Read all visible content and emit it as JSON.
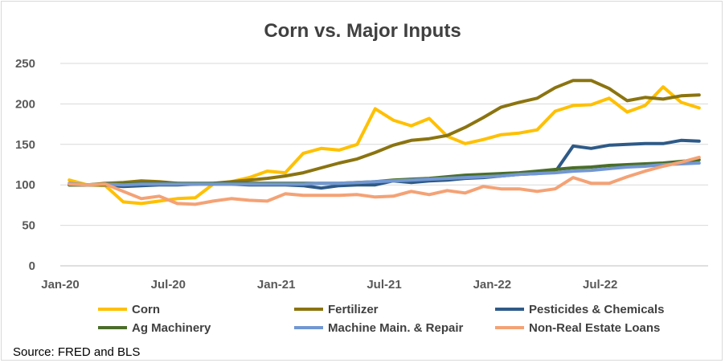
{
  "chart_data": {
    "type": "line",
    "title": "Corn vs. Major Inputs",
    "xlabel": "",
    "ylabel": "",
    "ylim": [
      0,
      250
    ],
    "yticks": [
      0,
      50,
      100,
      150,
      200,
      250
    ],
    "grid": true,
    "legend_position": "bottom",
    "x": [
      "Jan-20",
      "Feb-20",
      "Mar-20",
      "Apr-20",
      "May-20",
      "Jun-20",
      "Jul-20",
      "Aug-20",
      "Sep-20",
      "Oct-20",
      "Nov-20",
      "Dec-20",
      "Jan-21",
      "Feb-21",
      "Mar-21",
      "Apr-21",
      "May-21",
      "Jun-21",
      "Jul-21",
      "Aug-21",
      "Sep-21",
      "Oct-21",
      "Nov-21",
      "Dec-21",
      "Jan-22",
      "Feb-22",
      "Mar-22",
      "Apr-22",
      "May-22",
      "Jun-22",
      "Jul-22",
      "Aug-22",
      "Sep-22",
      "Oct-22",
      "Nov-22",
      "Dec-22"
    ],
    "xtick_labels": [
      {
        "index": 0,
        "label": "Jan-20"
      },
      {
        "index": 6,
        "label": "Jul-20"
      },
      {
        "index": 12,
        "label": "Jan-21"
      },
      {
        "index": 18,
        "label": "Jul-21"
      },
      {
        "index": 24,
        "label": "Jan-22"
      },
      {
        "index": 30,
        "label": "Jul-22"
      }
    ],
    "series": [
      {
        "name": "Corn",
        "color": "#ffc000",
        "values": [
          106,
          100,
          99,
          79,
          77,
          80,
          83,
          84,
          101,
          104,
          109,
          117,
          115,
          139,
          145,
          143,
          150,
          194,
          180,
          173,
          182,
          160,
          151,
          156,
          162,
          164,
          168,
          191,
          198,
          199,
          207,
          190,
          198,
          221,
          202,
          195
        ]
      },
      {
        "name": "Fertilizer",
        "color": "#8b7410",
        "values": [
          100,
          100,
          102,
          103,
          105,
          104,
          102,
          101,
          102,
          104,
          106,
          108,
          111,
          115,
          121,
          127,
          132,
          140,
          149,
          155,
          157,
          161,
          171,
          183,
          196,
          202,
          207,
          220,
          229,
          229,
          219,
          204,
          208,
          206,
          210,
          211
        ]
      },
      {
        "name": "Pesticides & Chemicals",
        "color": "#2e5a87",
        "values": [
          100,
          100,
          100,
          98,
          99,
          100,
          100,
          101,
          101,
          101,
          100,
          100,
          100,
          99,
          96,
          99,
          100,
          100,
          105,
          103,
          105,
          106,
          108,
          109,
          111,
          113,
          114,
          116,
          148,
          145,
          149,
          150,
          151,
          151,
          155,
          154
        ]
      },
      {
        "name": "Ag Machinery",
        "color": "#4a6e2a",
        "values": [
          100,
          100,
          101,
          101,
          102,
          102,
          102,
          102,
          102,
          102,
          102,
          102,
          102,
          102,
          102,
          102,
          103,
          104,
          106,
          107,
          108,
          110,
          112,
          113,
          114,
          115,
          117,
          119,
          121,
          122,
          124,
          125,
          126,
          127,
          129,
          131
        ]
      },
      {
        "name": "Machine Main. & Repair",
        "color": "#7297d2",
        "values": [
          102,
          100,
          101,
          100,
          101,
          101,
          101,
          101,
          101,
          101,
          101,
          101,
          101,
          101,
          102,
          102,
          103,
          104,
          105,
          106,
          107,
          108,
          109,
          110,
          111,
          113,
          114,
          115,
          117,
          118,
          120,
          122,
          123,
          125,
          126,
          127
        ]
      },
      {
        "name": "Non-Real Estate Loans",
        "color": "#f4a275",
        "values": [
          101,
          100,
          101,
          92,
          83,
          86,
          77,
          76,
          80,
          83,
          81,
          80,
          89,
          87,
          87,
          87,
          88,
          85,
          86,
          92,
          88,
          93,
          90,
          98,
          95,
          95,
          92,
          95,
          109,
          102,
          102,
          110,
          117,
          123,
          128,
          134
        ]
      }
    ]
  },
  "source_note": "Source: FRED and BLS"
}
